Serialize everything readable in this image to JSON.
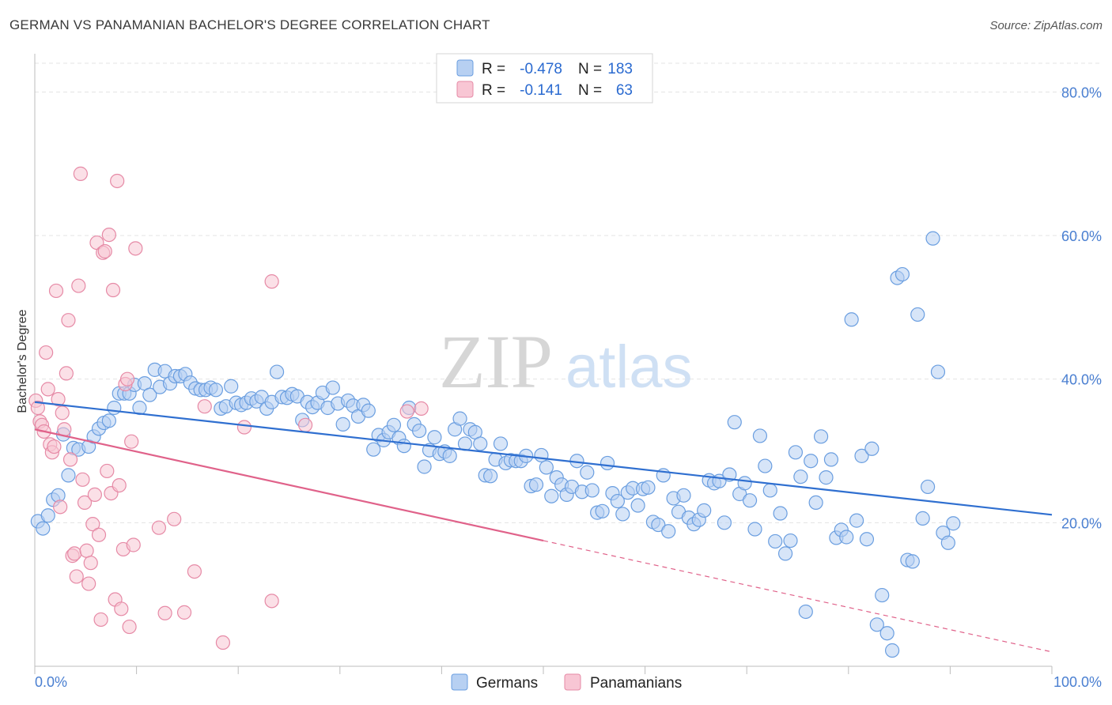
{
  "title": "GERMAN VS PANAMANIAN BACHELOR'S DEGREE CORRELATION CHART",
  "source": "Source: ZipAtlas.com",
  "watermark": {
    "zip": "ZIP",
    "atlas": "atlas"
  },
  "legend": {
    "r_label": "R =",
    "n_label": "N =",
    "rows": [
      {
        "r": "-0.478",
        "n": "183",
        "color": "#6a9ee0",
        "fill": "#b7d0f2"
      },
      {
        "r": "-0.141",
        "n": "63",
        "color": "#e68aa6",
        "fill": "#f8c6d4"
      }
    ]
  },
  "bottom_legend": [
    "Germans",
    "Panamanians"
  ],
  "chart_data": {
    "type": "scatter",
    "title": "GERMAN VS PANAMANIAN BACHELOR'S DEGREE CORRELATION CHART",
    "xlabel": "",
    "ylabel": "Bachelor's Degree",
    "xlim": [
      0,
      100
    ],
    "ylim": [
      0,
      84
    ],
    "x_tick_labels": [
      "0.0%",
      "100.0%"
    ],
    "y_ticks": [
      20,
      40,
      60,
      80
    ],
    "y_tick_labels": [
      "20.0%",
      "40.0%",
      "60.0%",
      "80.0%"
    ],
    "grid": true,
    "legend_position": "top-center",
    "series": [
      {
        "name": "Germans",
        "color": "#6a9ee0",
        "fill": "#b7d0f2",
        "trend": {
          "x0": 0,
          "y0": 36.8,
          "x1": 100,
          "y1": 21.1,
          "solid_to": 100
        },
        "points": [
          [
            0.3,
            20.2
          ],
          [
            0.8,
            19.2
          ],
          [
            1.3,
            21.0
          ],
          [
            1.8,
            23.2
          ],
          [
            2.3,
            23.8
          ],
          [
            2.8,
            32.3
          ],
          [
            3.3,
            26.6
          ],
          [
            3.8,
            30.4
          ],
          [
            4.3,
            30.2
          ],
          [
            5.3,
            30.6
          ],
          [
            5.8,
            32.0
          ],
          [
            6.3,
            33.1
          ],
          [
            6.8,
            33.9
          ],
          [
            7.3,
            34.2
          ],
          [
            7.8,
            36.0
          ],
          [
            8.3,
            38.0
          ],
          [
            8.8,
            38.0
          ],
          [
            9.3,
            38.0
          ],
          [
            9.8,
            39.2
          ],
          [
            10.3,
            36.0
          ],
          [
            10.8,
            39.4
          ],
          [
            11.3,
            37.8
          ],
          [
            11.8,
            41.3
          ],
          [
            12.3,
            38.9
          ],
          [
            12.8,
            41.1
          ],
          [
            13.3,
            39.4
          ],
          [
            13.8,
            40.4
          ],
          [
            14.3,
            40.4
          ],
          [
            14.8,
            40.7
          ],
          [
            15.3,
            39.5
          ],
          [
            15.8,
            38.7
          ],
          [
            16.3,
            38.5
          ],
          [
            16.8,
            38.5
          ],
          [
            17.3,
            38.8
          ],
          [
            17.8,
            38.5
          ],
          [
            18.3,
            35.9
          ],
          [
            18.8,
            36.2
          ],
          [
            19.3,
            39.0
          ],
          [
            19.8,
            36.7
          ],
          [
            20.3,
            36.4
          ],
          [
            20.8,
            36.7
          ],
          [
            21.3,
            37.3
          ],
          [
            21.8,
            36.9
          ],
          [
            22.3,
            37.5
          ],
          [
            22.8,
            35.9
          ],
          [
            23.3,
            36.8
          ],
          [
            23.8,
            41.0
          ],
          [
            24.3,
            37.5
          ],
          [
            24.8,
            37.4
          ],
          [
            25.3,
            37.9
          ],
          [
            25.8,
            37.6
          ],
          [
            26.3,
            34.3
          ],
          [
            26.8,
            36.8
          ],
          [
            27.3,
            36.1
          ],
          [
            27.8,
            36.7
          ],
          [
            28.3,
            38.1
          ],
          [
            28.8,
            36.0
          ],
          [
            29.3,
            38.8
          ],
          [
            29.8,
            36.6
          ],
          [
            30.3,
            33.7
          ],
          [
            30.8,
            37.0
          ],
          [
            31.3,
            36.3
          ],
          [
            31.8,
            34.8
          ],
          [
            32.3,
            36.4
          ],
          [
            32.8,
            35.6
          ],
          [
            33.3,
            30.2
          ],
          [
            33.8,
            32.2
          ],
          [
            34.3,
            31.5
          ],
          [
            34.8,
            32.6
          ],
          [
            35.3,
            33.6
          ],
          [
            35.8,
            31.8
          ],
          [
            36.3,
            30.7
          ],
          [
            36.8,
            36.0
          ],
          [
            37.3,
            33.7
          ],
          [
            37.8,
            32.8
          ],
          [
            38.3,
            27.8
          ],
          [
            38.8,
            30.1
          ],
          [
            39.3,
            31.9
          ],
          [
            39.8,
            29.6
          ],
          [
            40.3,
            29.9
          ],
          [
            40.8,
            29.3
          ],
          [
            41.3,
            33.0
          ],
          [
            41.8,
            34.5
          ],
          [
            42.3,
            31.0
          ],
          [
            42.8,
            33.0
          ],
          [
            43.3,
            32.6
          ],
          [
            43.8,
            31.0
          ],
          [
            44.3,
            26.6
          ],
          [
            44.8,
            26.5
          ],
          [
            45.3,
            28.8
          ],
          [
            45.8,
            31.0
          ],
          [
            46.3,
            28.3
          ],
          [
            46.8,
            28.7
          ],
          [
            47.3,
            28.6
          ],
          [
            47.8,
            28.6
          ],
          [
            48.3,
            29.3
          ],
          [
            48.8,
            25.1
          ],
          [
            49.3,
            25.3
          ],
          [
            49.8,
            29.4
          ],
          [
            50.3,
            27.7
          ],
          [
            50.8,
            23.7
          ],
          [
            51.3,
            26.3
          ],
          [
            51.8,
            25.3
          ],
          [
            52.3,
            23.9
          ],
          [
            52.8,
            25.0
          ],
          [
            53.3,
            28.6
          ],
          [
            53.8,
            24.3
          ],
          [
            54.3,
            27.0
          ],
          [
            54.8,
            24.5
          ],
          [
            55.3,
            21.4
          ],
          [
            55.8,
            21.6
          ],
          [
            56.3,
            28.3
          ],
          [
            56.8,
            24.1
          ],
          [
            57.3,
            23.0
          ],
          [
            57.8,
            21.2
          ],
          [
            58.3,
            24.2
          ],
          [
            58.8,
            24.8
          ],
          [
            59.3,
            22.4
          ],
          [
            59.8,
            24.7
          ],
          [
            60.3,
            24.9
          ],
          [
            60.8,
            20.1
          ],
          [
            61.3,
            19.7
          ],
          [
            61.8,
            26.6
          ],
          [
            62.3,
            18.8
          ],
          [
            62.8,
            23.4
          ],
          [
            63.3,
            21.5
          ],
          [
            63.8,
            23.8
          ],
          [
            64.3,
            20.7
          ],
          [
            64.8,
            19.8
          ],
          [
            65.3,
            20.4
          ],
          [
            65.8,
            21.7
          ],
          [
            66.3,
            25.9
          ],
          [
            66.8,
            25.5
          ],
          [
            67.3,
            25.8
          ],
          [
            67.8,
            20.0
          ],
          [
            68.3,
            26.7
          ],
          [
            68.8,
            34.0
          ],
          [
            69.3,
            24.0
          ],
          [
            69.8,
            25.5
          ],
          [
            70.3,
            23.1
          ],
          [
            70.8,
            19.1
          ],
          [
            71.3,
            32.1
          ],
          [
            71.8,
            27.9
          ],
          [
            72.3,
            24.5
          ],
          [
            72.8,
            17.4
          ],
          [
            73.3,
            21.3
          ],
          [
            73.8,
            15.7
          ],
          [
            74.3,
            17.5
          ],
          [
            74.8,
            29.8
          ],
          [
            75.3,
            26.4
          ],
          [
            75.8,
            7.6
          ],
          [
            76.3,
            28.6
          ],
          [
            76.8,
            22.8
          ],
          [
            77.3,
            32.0
          ],
          [
            77.8,
            26.3
          ],
          [
            78.3,
            28.8
          ],
          [
            78.8,
            17.9
          ],
          [
            79.3,
            19.0
          ],
          [
            79.8,
            18.0
          ],
          [
            80.3,
            48.3
          ],
          [
            80.8,
            20.3
          ],
          [
            81.3,
            29.3
          ],
          [
            81.8,
            17.7
          ],
          [
            82.3,
            30.3
          ],
          [
            82.8,
            5.8
          ],
          [
            83.3,
            9.9
          ],
          [
            83.8,
            4.6
          ],
          [
            84.3,
            2.2
          ],
          [
            84.8,
            54.1
          ],
          [
            85.3,
            54.6
          ],
          [
            85.8,
            14.8
          ],
          [
            86.3,
            14.6
          ],
          [
            86.8,
            49.0
          ],
          [
            87.3,
            20.6
          ],
          [
            87.8,
            25.0
          ],
          [
            88.3,
            59.6
          ],
          [
            88.8,
            41.0
          ],
          [
            89.3,
            18.6
          ],
          [
            89.8,
            17.2
          ],
          [
            90.3,
            19.9
          ]
        ]
      },
      {
        "name": "Panamanians",
        "color": "#e68aa6",
        "fill": "#f8c6d4",
        "trend": {
          "x0": 0,
          "y0": 33.0,
          "x1": 100,
          "y1": 2.0,
          "solid_to": 50
        },
        "points": [
          [
            0.1,
            37.0
          ],
          [
            0.3,
            36.0
          ],
          [
            0.5,
            34.1
          ],
          [
            0.7,
            33.6
          ],
          [
            0.9,
            32.7
          ],
          [
            1.1,
            43.7
          ],
          [
            1.3,
            38.6
          ],
          [
            1.5,
            30.9
          ],
          [
            1.7,
            29.8
          ],
          [
            1.9,
            30.6
          ],
          [
            2.1,
            52.3
          ],
          [
            2.3,
            37.2
          ],
          [
            2.5,
            22.2
          ],
          [
            2.7,
            35.3
          ],
          [
            2.9,
            33.0
          ],
          [
            3.1,
            40.8
          ],
          [
            3.3,
            48.2
          ],
          [
            3.5,
            28.8
          ],
          [
            3.7,
            15.4
          ],
          [
            3.9,
            15.7
          ],
          [
            4.1,
            12.5
          ],
          [
            4.3,
            53.0
          ],
          [
            4.5,
            68.6
          ],
          [
            4.7,
            26.0
          ],
          [
            4.9,
            22.8
          ],
          [
            5.1,
            16.1
          ],
          [
            5.3,
            11.5
          ],
          [
            5.5,
            14.4
          ],
          [
            5.7,
            19.8
          ],
          [
            5.9,
            23.9
          ],
          [
            6.1,
            59.0
          ],
          [
            6.3,
            18.3
          ],
          [
            6.5,
            6.5
          ],
          [
            6.7,
            57.6
          ],
          [
            6.9,
            57.8
          ],
          [
            7.1,
            27.2
          ],
          [
            7.3,
            60.1
          ],
          [
            7.5,
            24.1
          ],
          [
            7.7,
            52.4
          ],
          [
            7.9,
            9.3
          ],
          [
            8.1,
            67.6
          ],
          [
            8.3,
            25.2
          ],
          [
            8.5,
            8.0
          ],
          [
            8.7,
            16.3
          ],
          [
            8.9,
            39.3
          ],
          [
            9.1,
            40.0
          ],
          [
            9.3,
            5.5
          ],
          [
            9.5,
            31.3
          ],
          [
            9.7,
            16.9
          ],
          [
            9.9,
            58.2
          ],
          [
            12.2,
            19.3
          ],
          [
            12.8,
            7.4
          ],
          [
            13.7,
            20.5
          ],
          [
            14.7,
            7.5
          ],
          [
            15.7,
            13.2
          ],
          [
            16.7,
            36.2
          ],
          [
            18.5,
            3.3
          ],
          [
            20.6,
            33.3
          ],
          [
            23.3,
            53.6
          ],
          [
            23.3,
            9.1
          ],
          [
            26.6,
            33.6
          ],
          [
            36.6,
            35.5
          ],
          [
            38.0,
            35.9
          ]
        ]
      }
    ]
  }
}
